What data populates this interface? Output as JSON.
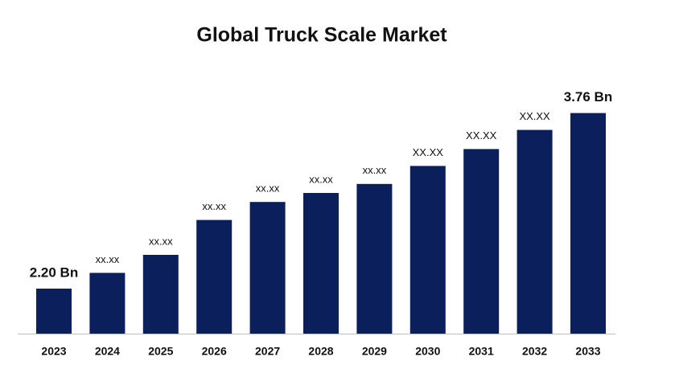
{
  "chart_data": {
    "type": "bar",
    "title": "Global Truck Scale Market",
    "categories": [
      "2023",
      "2024",
      "2025",
      "2026",
      "2027",
      "2028",
      "2029",
      "2030",
      "2031",
      "2032",
      "2033"
    ],
    "values": [
      2.2,
      2.34,
      2.5,
      2.81,
      2.97,
      3.05,
      3.13,
      3.29,
      3.44,
      3.61,
      3.76
    ],
    "value_labels": [
      "2.20 Bn",
      "xx.xx",
      "xx.xx",
      "xx.xx",
      "xx.xx",
      "xx.xx",
      "xx.xx",
      "XX.XX",
      "XX.XX",
      "XX.XX",
      "3.76 Bn"
    ],
    "color": "#0b1f5c",
    "ylim": [
      1.8,
      3.9
    ]
  }
}
